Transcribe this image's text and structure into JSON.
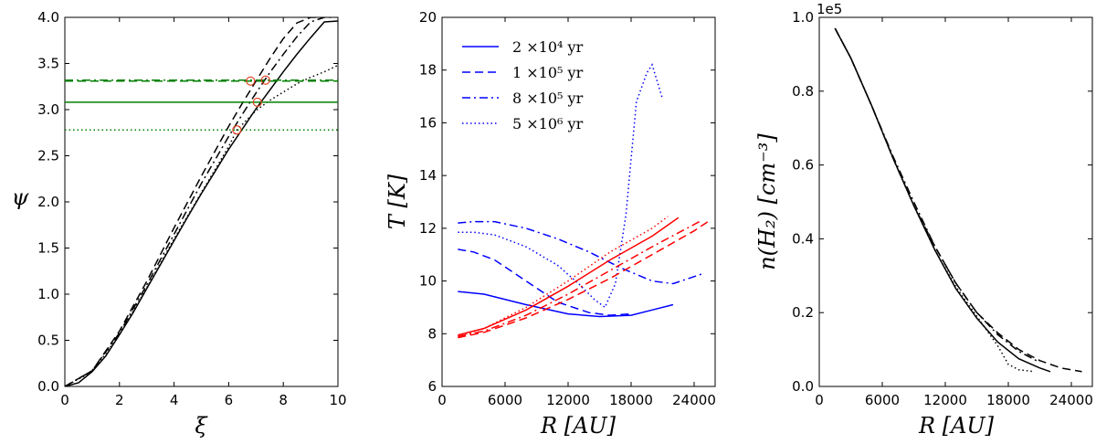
{
  "colors": {
    "black": "#000000",
    "green": "#008000",
    "blue": "#0000ff",
    "red": "#ff0000",
    "marker": "#e04020"
  },
  "chart_data": [
    {
      "type": "line",
      "xlabel": "ξ",
      "ylabel": "ψ",
      "xlim": [
        0,
        10
      ],
      "ylim": [
        0,
        4
      ],
      "xticks": [
        "0",
        "2",
        "4",
        "6",
        "8",
        "10"
      ],
      "yticks": [
        "0.0",
        "0.5",
        "1.0",
        "1.5",
        "2.0",
        "2.5",
        "3.0",
        "3.5",
        "4.0"
      ],
      "series": [
        {
          "style": "solid",
          "color": "#000000",
          "x": [
            0,
            0.5,
            1,
            1.5,
            2,
            2.5,
            3,
            3.5,
            4,
            4.5,
            5,
            5.5,
            6,
            6.5,
            7,
            7.5,
            8,
            8.5,
            9,
            9.5,
            10
          ],
          "y": [
            0,
            0.04,
            0.16,
            0.33,
            0.56,
            0.8,
            1.06,
            1.32,
            1.58,
            1.84,
            2.09,
            2.33,
            2.57,
            2.79,
            3.01,
            3.21,
            3.41,
            3.6,
            3.78,
            3.95,
            3.96
          ]
        },
        {
          "style": "dashed",
          "color": "#000000",
          "x": [
            0,
            1,
            2,
            3,
            4,
            5,
            6,
            6.5,
            7,
            7.5,
            8,
            8.5,
            9,
            9.3
          ],
          "y": [
            0,
            0.17,
            0.6,
            1.14,
            1.72,
            2.28,
            2.82,
            3.07,
            3.31,
            3.55,
            3.77,
            3.94,
            4.0,
            4.0
          ]
        },
        {
          "style": "dashdot",
          "color": "#000000",
          "x": [
            0,
            1,
            2,
            3,
            4,
            5,
            6,
            6.5,
            7,
            7.5,
            8,
            8.5,
            9,
            9.5,
            9.8
          ],
          "y": [
            0,
            0.17,
            0.58,
            1.1,
            1.65,
            2.2,
            2.71,
            2.95,
            3.18,
            3.4,
            3.6,
            3.79,
            3.95,
            4.0,
            4.0
          ]
        },
        {
          "style": "dotted",
          "color": "#000000",
          "x": [
            0,
            1,
            2,
            3,
            4,
            5,
            6,
            6.3,
            7,
            7.5,
            8,
            8.5,
            9,
            9.5,
            10
          ],
          "y": [
            0,
            0.16,
            0.56,
            1.07,
            1.6,
            2.1,
            2.6,
            2.78,
            2.99,
            3.1,
            3.19,
            3.28,
            3.35,
            3.41,
            3.48
          ]
        },
        {
          "style": "solid",
          "color": "#008000",
          "x": [
            0,
            10
          ],
          "y": [
            3.08,
            3.08
          ]
        },
        {
          "style": "dashed",
          "color": "#008000",
          "x": [
            0,
            10
          ],
          "y": [
            3.31,
            3.31
          ]
        },
        {
          "style": "dashdot",
          "color": "#008000",
          "x": [
            0,
            10
          ],
          "y": [
            3.32,
            3.32
          ]
        },
        {
          "style": "dotted",
          "color": "#008000",
          "x": [
            0,
            10
          ],
          "y": [
            2.78,
            2.78
          ]
        }
      ],
      "markers": [
        {
          "x": 6.3,
          "y": 2.78
        },
        {
          "x": 6.8,
          "y": 3.31
        },
        {
          "x": 7.05,
          "y": 3.08
        },
        {
          "x": 7.35,
          "y": 3.32
        }
      ]
    },
    {
      "type": "line",
      "xlabel": "R [AU]",
      "ylabel": "T [K]",
      "xlim": [
        0,
        26000
      ],
      "ylim": [
        6,
        20
      ],
      "xticks": [
        "0",
        "6000",
        "12000",
        "18000",
        "24000"
      ],
      "yticks": [
        "6",
        "8",
        "10",
        "12",
        "14",
        "16",
        "18",
        "20"
      ],
      "legend": {
        "placement": "top-left",
        "entries": [
          {
            "style": "solid",
            "label": "2 ×10⁴  yr"
          },
          {
            "style": "dashed",
            "label": "1 ×10⁵  yr"
          },
          {
            "style": "dashdot",
            "label": "8 ×10⁵  yr"
          },
          {
            "style": "dotted",
            "label": "5 ×10⁶  yr"
          }
        ]
      },
      "series": [
        {
          "style": "solid",
          "color": "#0000ff",
          "x": [
            1500,
            4000,
            8000,
            12000,
            15000,
            18000,
            20000,
            22000
          ],
          "y": [
            9.6,
            9.5,
            9.1,
            8.75,
            8.65,
            8.7,
            8.9,
            9.1
          ]
        },
        {
          "style": "dashed",
          "color": "#0000ff",
          "x": [
            1500,
            3000,
            5000,
            8000,
            11000,
            14000,
            16000,
            18000
          ],
          "y": [
            11.2,
            11.1,
            10.8,
            10.0,
            9.2,
            8.8,
            8.7,
            8.75
          ]
        },
        {
          "style": "dashdot",
          "color": "#0000ff",
          "x": [
            1500,
            3000,
            5000,
            8000,
            11000,
            14000,
            17000,
            20000,
            22000,
            25000
          ],
          "y": [
            12.2,
            12.25,
            12.25,
            12.0,
            11.6,
            11.1,
            10.5,
            10.0,
            9.9,
            10.3
          ]
        },
        {
          "style": "dotted",
          "color": "#0000ff",
          "x": [
            1500,
            3000,
            5000,
            8000,
            11000,
            13000,
            14500,
            15500,
            16500,
            17500,
            18500,
            19500,
            20000,
            21000
          ],
          "y": [
            11.85,
            11.85,
            11.75,
            11.3,
            10.6,
            9.9,
            9.3,
            9.0,
            9.9,
            12.5,
            16.8,
            17.9,
            18.2,
            16.9
          ]
        },
        {
          "style": "solid",
          "color": "#ff0000",
          "x": [
            1500,
            4000,
            8000,
            12000,
            16000,
            20000,
            22500
          ],
          "y": [
            7.95,
            8.2,
            8.9,
            9.8,
            10.8,
            11.7,
            12.4
          ]
        },
        {
          "style": "dashed",
          "color": "#ff0000",
          "x": [
            1500,
            4000,
            8000,
            12000,
            16000,
            20000,
            24000,
            25500
          ],
          "y": [
            7.85,
            8.05,
            8.6,
            9.3,
            10.1,
            11.0,
            11.9,
            12.3
          ]
        },
        {
          "style": "dashdot",
          "color": "#ff0000",
          "x": [
            1500,
            4000,
            8000,
            12000,
            16000,
            20000,
            24500
          ],
          "y": [
            7.9,
            8.1,
            8.7,
            9.5,
            10.4,
            11.3,
            12.25
          ]
        },
        {
          "style": "dotted",
          "color": "#ff0000",
          "x": [
            1500,
            4000,
            8000,
            12000,
            16000,
            20000,
            21500
          ],
          "y": [
            7.9,
            8.2,
            9.0,
            10.0,
            11.1,
            12.0,
            12.45
          ]
        }
      ]
    },
    {
      "type": "line",
      "xlabel": "R [AU]",
      "ylabel": "n(H₂)  [cm⁻³]",
      "offset_text": "1e5",
      "xlim": [
        0,
        26000
      ],
      "ylim": [
        0,
        1.0
      ],
      "xticks": [
        "0",
        "6000",
        "12000",
        "18000",
        "24000"
      ],
      "yticks": [
        "0.0",
        "0.2",
        "0.4",
        "0.6",
        "0.8",
        "1.0"
      ],
      "series": [
        {
          "style": "solid",
          "color": "#000000",
          "x": [
            1500,
            3000,
            5000,
            7000,
            9000,
            11000,
            13000,
            15000,
            17000,
            19000,
            21000,
            22000
          ],
          "y": [
            0.97,
            0.89,
            0.76,
            0.62,
            0.49,
            0.37,
            0.265,
            0.185,
            0.12,
            0.075,
            0.05,
            0.04
          ]
        },
        {
          "style": "dashed",
          "color": "#000000",
          "x": [
            1500,
            3000,
            5000,
            7000,
            9000,
            11000,
            13000,
            15000,
            17000,
            19000,
            21000,
            23000,
            25000
          ],
          "y": [
            0.97,
            0.89,
            0.76,
            0.62,
            0.49,
            0.38,
            0.28,
            0.2,
            0.145,
            0.1,
            0.07,
            0.05,
            0.04
          ]
        },
        {
          "style": "dashdot",
          "color": "#000000",
          "x": [
            1500,
            3000,
            5000,
            7000,
            9000,
            11000,
            13000,
            15000,
            17000,
            19000,
            21000
          ],
          "y": [
            0.97,
            0.89,
            0.76,
            0.625,
            0.5,
            0.38,
            0.28,
            0.2,
            0.14,
            0.095,
            0.065
          ]
        },
        {
          "style": "dotted",
          "color": "#000000",
          "x": [
            1500,
            3000,
            5000,
            7000,
            9000,
            11000,
            13000,
            15000,
            17000,
            18000,
            19000,
            20500
          ],
          "y": [
            0.97,
            0.89,
            0.76,
            0.62,
            0.49,
            0.37,
            0.27,
            0.19,
            0.11,
            0.06,
            0.045,
            0.04
          ]
        }
      ]
    }
  ]
}
